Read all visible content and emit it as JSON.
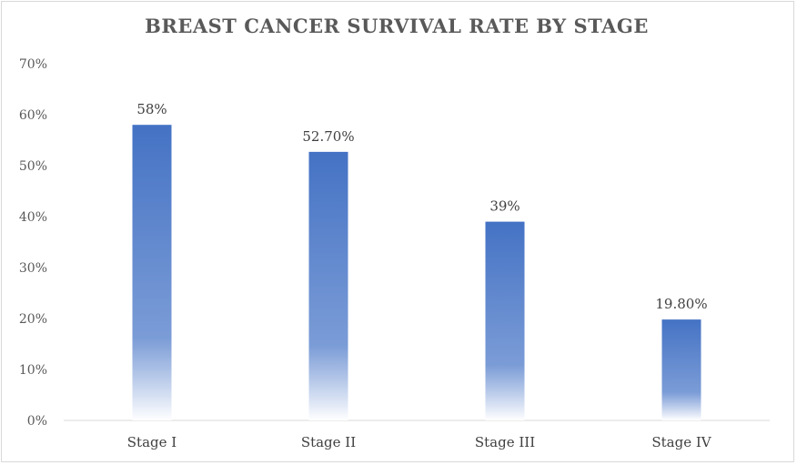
{
  "chart_data": {
    "type": "bar",
    "title": "BREAST CANCER SURVIVAL RATE BY STAGE",
    "categories": [
      "Stage I",
      "Stage II",
      "Stage III",
      "Stage IV"
    ],
    "values": [
      58,
      52.7,
      39,
      19.8
    ],
    "data_labels": [
      "58%",
      "52.70%",
      "39%",
      "19.80%"
    ],
    "yticks": [
      "0%",
      "10%",
      "20%",
      "30%",
      "40%",
      "50%",
      "60%",
      "70%"
    ],
    "ylim": [
      0,
      70
    ],
    "grid": false,
    "legend": "none",
    "colors": {
      "bar": "#4472c4",
      "axis": "#d9d9d9",
      "title": "#595959"
    }
  }
}
